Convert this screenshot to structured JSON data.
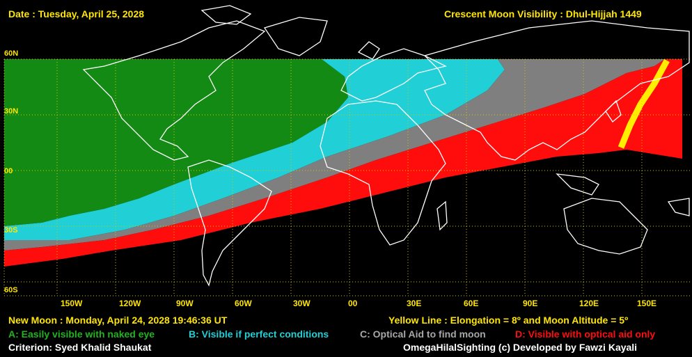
{
  "header": {
    "date": "Date : Tuesday, April 25, 2028",
    "title": "Crescent Moon Visibility : Dhul-Hijjah  1449"
  },
  "latitude_labels": [
    "60N",
    "30N",
    "00",
    "30S",
    "60S"
  ],
  "longitude_labels": [
    "150W",
    "120W",
    "90W",
    "60W",
    "30W",
    "00",
    "30E",
    "60E",
    "90E",
    "120E",
    "150E"
  ],
  "footer": {
    "new_moon": "New Moon : Monday, April 24, 2028  19:46:36  UT",
    "yellow_line": "Yellow Line : Elongation = 8º  and Moon Altitude = 5º",
    "legend_a": "A: Easily visible with naked eye",
    "legend_b": "B: Visible if perfect conditions",
    "legend_c": "C: Optical Aid to find moon",
    "legend_d": "D: Visible with optical aid only",
    "criterion": "Criterion: Syed Khalid Shaukat",
    "credit": "OmegaHilalSighting  (c)  Developed by Fawzi Kayali"
  },
  "colors": {
    "zone_a": "#138a13",
    "zone_b": "#21cfd6",
    "zone_c": "#7f7f7f",
    "zone_d": "#ff0d0d",
    "yellow_line": "#ffee00",
    "background": "#000000",
    "text_yellow": "#ffe600",
    "text_white": "#ffffff"
  }
}
